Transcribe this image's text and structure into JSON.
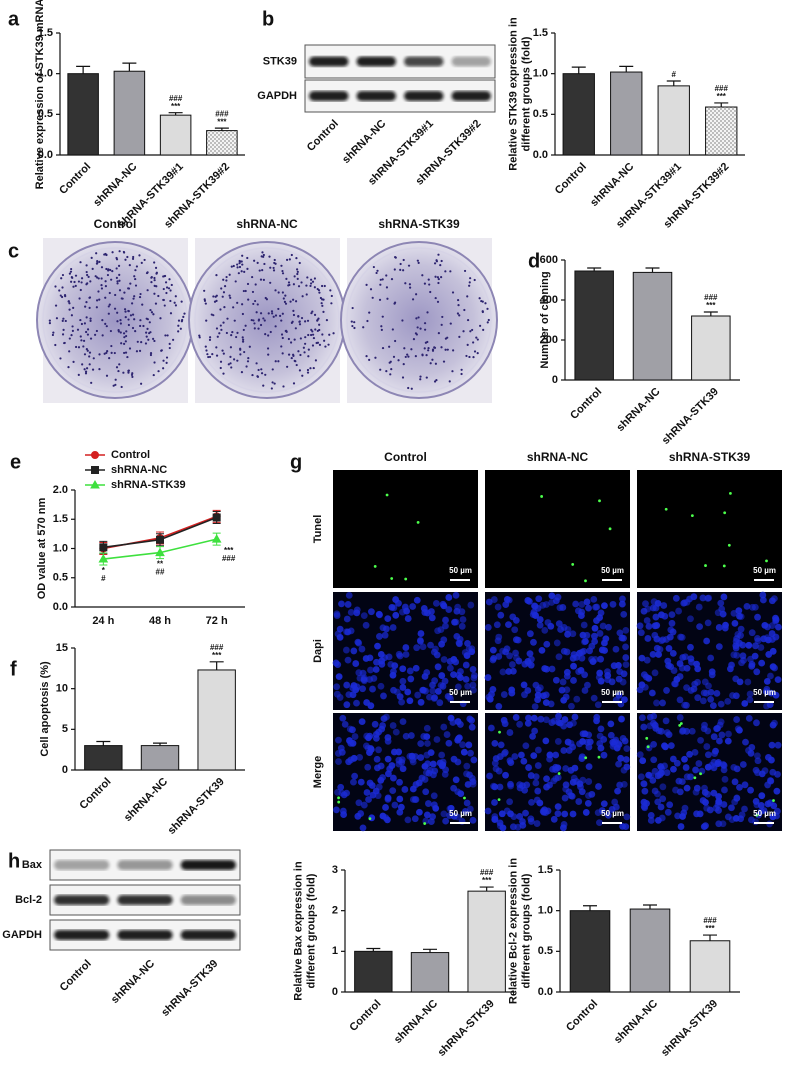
{
  "panel_labels": [
    "a",
    "b",
    "c",
    "d",
    "e",
    "f",
    "g",
    "h"
  ],
  "blot_b": {
    "rows": [
      "STK39",
      "GAPDH"
    ],
    "lanes": [
      "Control",
      "shRNA-NC",
      "shRNA-STK39#1",
      "shRNA-STK39#2"
    ]
  },
  "colony_images": {
    "titles": [
      "Control",
      "shRNA-NC",
      "shRNA-STK39"
    ]
  },
  "microscopy": {
    "columns": [
      "Control",
      "shRNA-NC",
      "shRNA-STK39"
    ],
    "rows": [
      "Tunel",
      "Dapi",
      "Merge"
    ],
    "scale_bar": "50 µm"
  },
  "blot_h": {
    "rows": [
      "Bax",
      "Bcl-2",
      "GAPDH"
    ],
    "lanes": [
      "Control",
      "shRNA-NC",
      "shRNA-STK39"
    ]
  },
  "chart_data": [
    {
      "type": "bar",
      "ylabel": [
        "Relative expression of STK39 mRNA"
      ],
      "categories": [
        "Control",
        "shRNA-NC",
        "shRNA-STK39#1",
        "shRNA-STK39#2"
      ],
      "values": [
        1.0,
        1.03,
        0.49,
        0.3
      ],
      "errors": [
        0.09,
        0.1,
        0.03,
        0.03
      ],
      "fills": [
        "#333333",
        "#a0a0a6",
        "#dcdcdc",
        "checker"
      ],
      "ylim": [
        0,
        1.5
      ],
      "yticks": [
        {
          "value": 0,
          "label": "0.0"
        },
        0.5,
        {
          "value": 1,
          "label": "1.0"
        },
        1.5
      ],
      "bar_labels": [
        [],
        [],
        [
          "###",
          "***"
        ],
        [
          "###",
          "***"
        ]
      ]
    },
    {
      "type": "bar",
      "ylabel": [
        "Relative STK39 expression in",
        "different groups (fold)"
      ],
      "categories": [
        "Control",
        "shRNA-NC",
        "shRNA-STK39#1",
        "shRNA-STK39#2"
      ],
      "values": [
        1.0,
        1.02,
        0.85,
        0.59
      ],
      "errors": [
        0.08,
        0.07,
        0.06,
        0.05
      ],
      "fills": [
        "#333333",
        "#a0a0a6",
        "#dcdcdc",
        "checker"
      ],
      "ylim": [
        0,
        1.5
      ],
      "yticks": [
        {
          "value": 0,
          "label": "0.0"
        },
        0.5,
        {
          "value": 1,
          "label": "1.0"
        },
        1.5
      ],
      "bar_labels": [
        [],
        [],
        [
          "#"
        ],
        [
          "###",
          "***"
        ]
      ]
    },
    {
      "type": "bar",
      "ylabel": [
        "Number of cloning"
      ],
      "categories": [
        "Control",
        "shRNA-NC",
        "shRNA-STK39"
      ],
      "values": [
        545,
        538,
        320
      ],
      "errors": [
        15,
        22,
        20
      ],
      "fills": [
        "#333333",
        "#a0a0a6",
        "#dcdcdc"
      ],
      "ylim": [
        0,
        600
      ],
      "yticks": [
        0,
        200,
        400,
        600
      ],
      "bar_labels": [
        [],
        [],
        [
          "###",
          "***"
        ]
      ]
    },
    {
      "type": "line",
      "ylabel": [
        "OD value at 570 nm"
      ],
      "categories": [
        "24 h",
        "48 h",
        "72 h"
      ],
      "series": [
        {
          "name": "Control",
          "color": "#d42020",
          "marker": "circle",
          "values": [
            1.0,
            1.18,
            1.55
          ]
        },
        {
          "name": "shRNA-NC",
          "color": "#222222",
          "marker": "square",
          "values": [
            1.02,
            1.15,
            1.53
          ]
        },
        {
          "name": "shRNA-STK39",
          "color": "#3ee03e",
          "marker": "triangle",
          "values": [
            0.82,
            0.93,
            1.16
          ]
        }
      ],
      "ylim": [
        0,
        2
      ],
      "yticks": [
        {
          "value": 0,
          "label": "0.0"
        },
        0.5,
        {
          "value": 1,
          "label": "1.0"
        },
        1.5,
        {
          "value": 2,
          "label": "2.0"
        }
      ],
      "annotations": [
        [
          "*",
          "#"
        ],
        [
          "**",
          "##"
        ],
        [
          "***",
          "###"
        ]
      ]
    },
    {
      "type": "bar",
      "ylabel": [
        "Cell apoptosis (%)"
      ],
      "categories": [
        "Control",
        "shRNA-NC",
        "shRNA-STK39"
      ],
      "values": [
        3.0,
        3.0,
        12.3
      ],
      "errors": [
        0.5,
        0.3,
        1.0
      ],
      "fills": [
        "#333333",
        "#a0a0a6",
        "#dcdcdc"
      ],
      "ylim": [
        0,
        15
      ],
      "yticks": [
        0,
        5,
        10,
        15
      ],
      "bar_labels": [
        [],
        [],
        [
          "###",
          "***"
        ]
      ]
    },
    {
      "type": "bar",
      "ylabel": [
        "Relative Bax expression in",
        "different groups (fold)"
      ],
      "categories": [
        "Control",
        "shRNA-NC",
        "shRNA-STK39"
      ],
      "values": [
        1.0,
        0.97,
        2.48
      ],
      "errors": [
        0.07,
        0.08,
        0.1
      ],
      "fills": [
        "#333333",
        "#a0a0a6",
        "#dcdcdc"
      ],
      "ylim": [
        0,
        3
      ],
      "yticks": [
        0,
        1,
        2,
        3
      ],
      "bar_labels": [
        [],
        [],
        [
          "###",
          "***"
        ]
      ]
    },
    {
      "type": "bar",
      "ylabel": [
        "Relative Bcl-2 expression in",
        "different groups (fold)"
      ],
      "categories": [
        "Control",
        "shRNA-NC",
        "shRNA-STK39"
      ],
      "values": [
        1.0,
        1.02,
        0.63
      ],
      "errors": [
        0.06,
        0.05,
        0.07
      ],
      "fills": [
        "#333333",
        "#a0a0a6",
        "#dcdcdc"
      ],
      "ylim": [
        0,
        1.5
      ],
      "yticks": [
        {
          "value": 0,
          "label": "0.0"
        },
        0.5,
        {
          "value": 1,
          "label": "1.0"
        },
        1.5
      ],
      "bar_labels": [
        [],
        [],
        [
          "###",
          "***"
        ]
      ]
    }
  ]
}
